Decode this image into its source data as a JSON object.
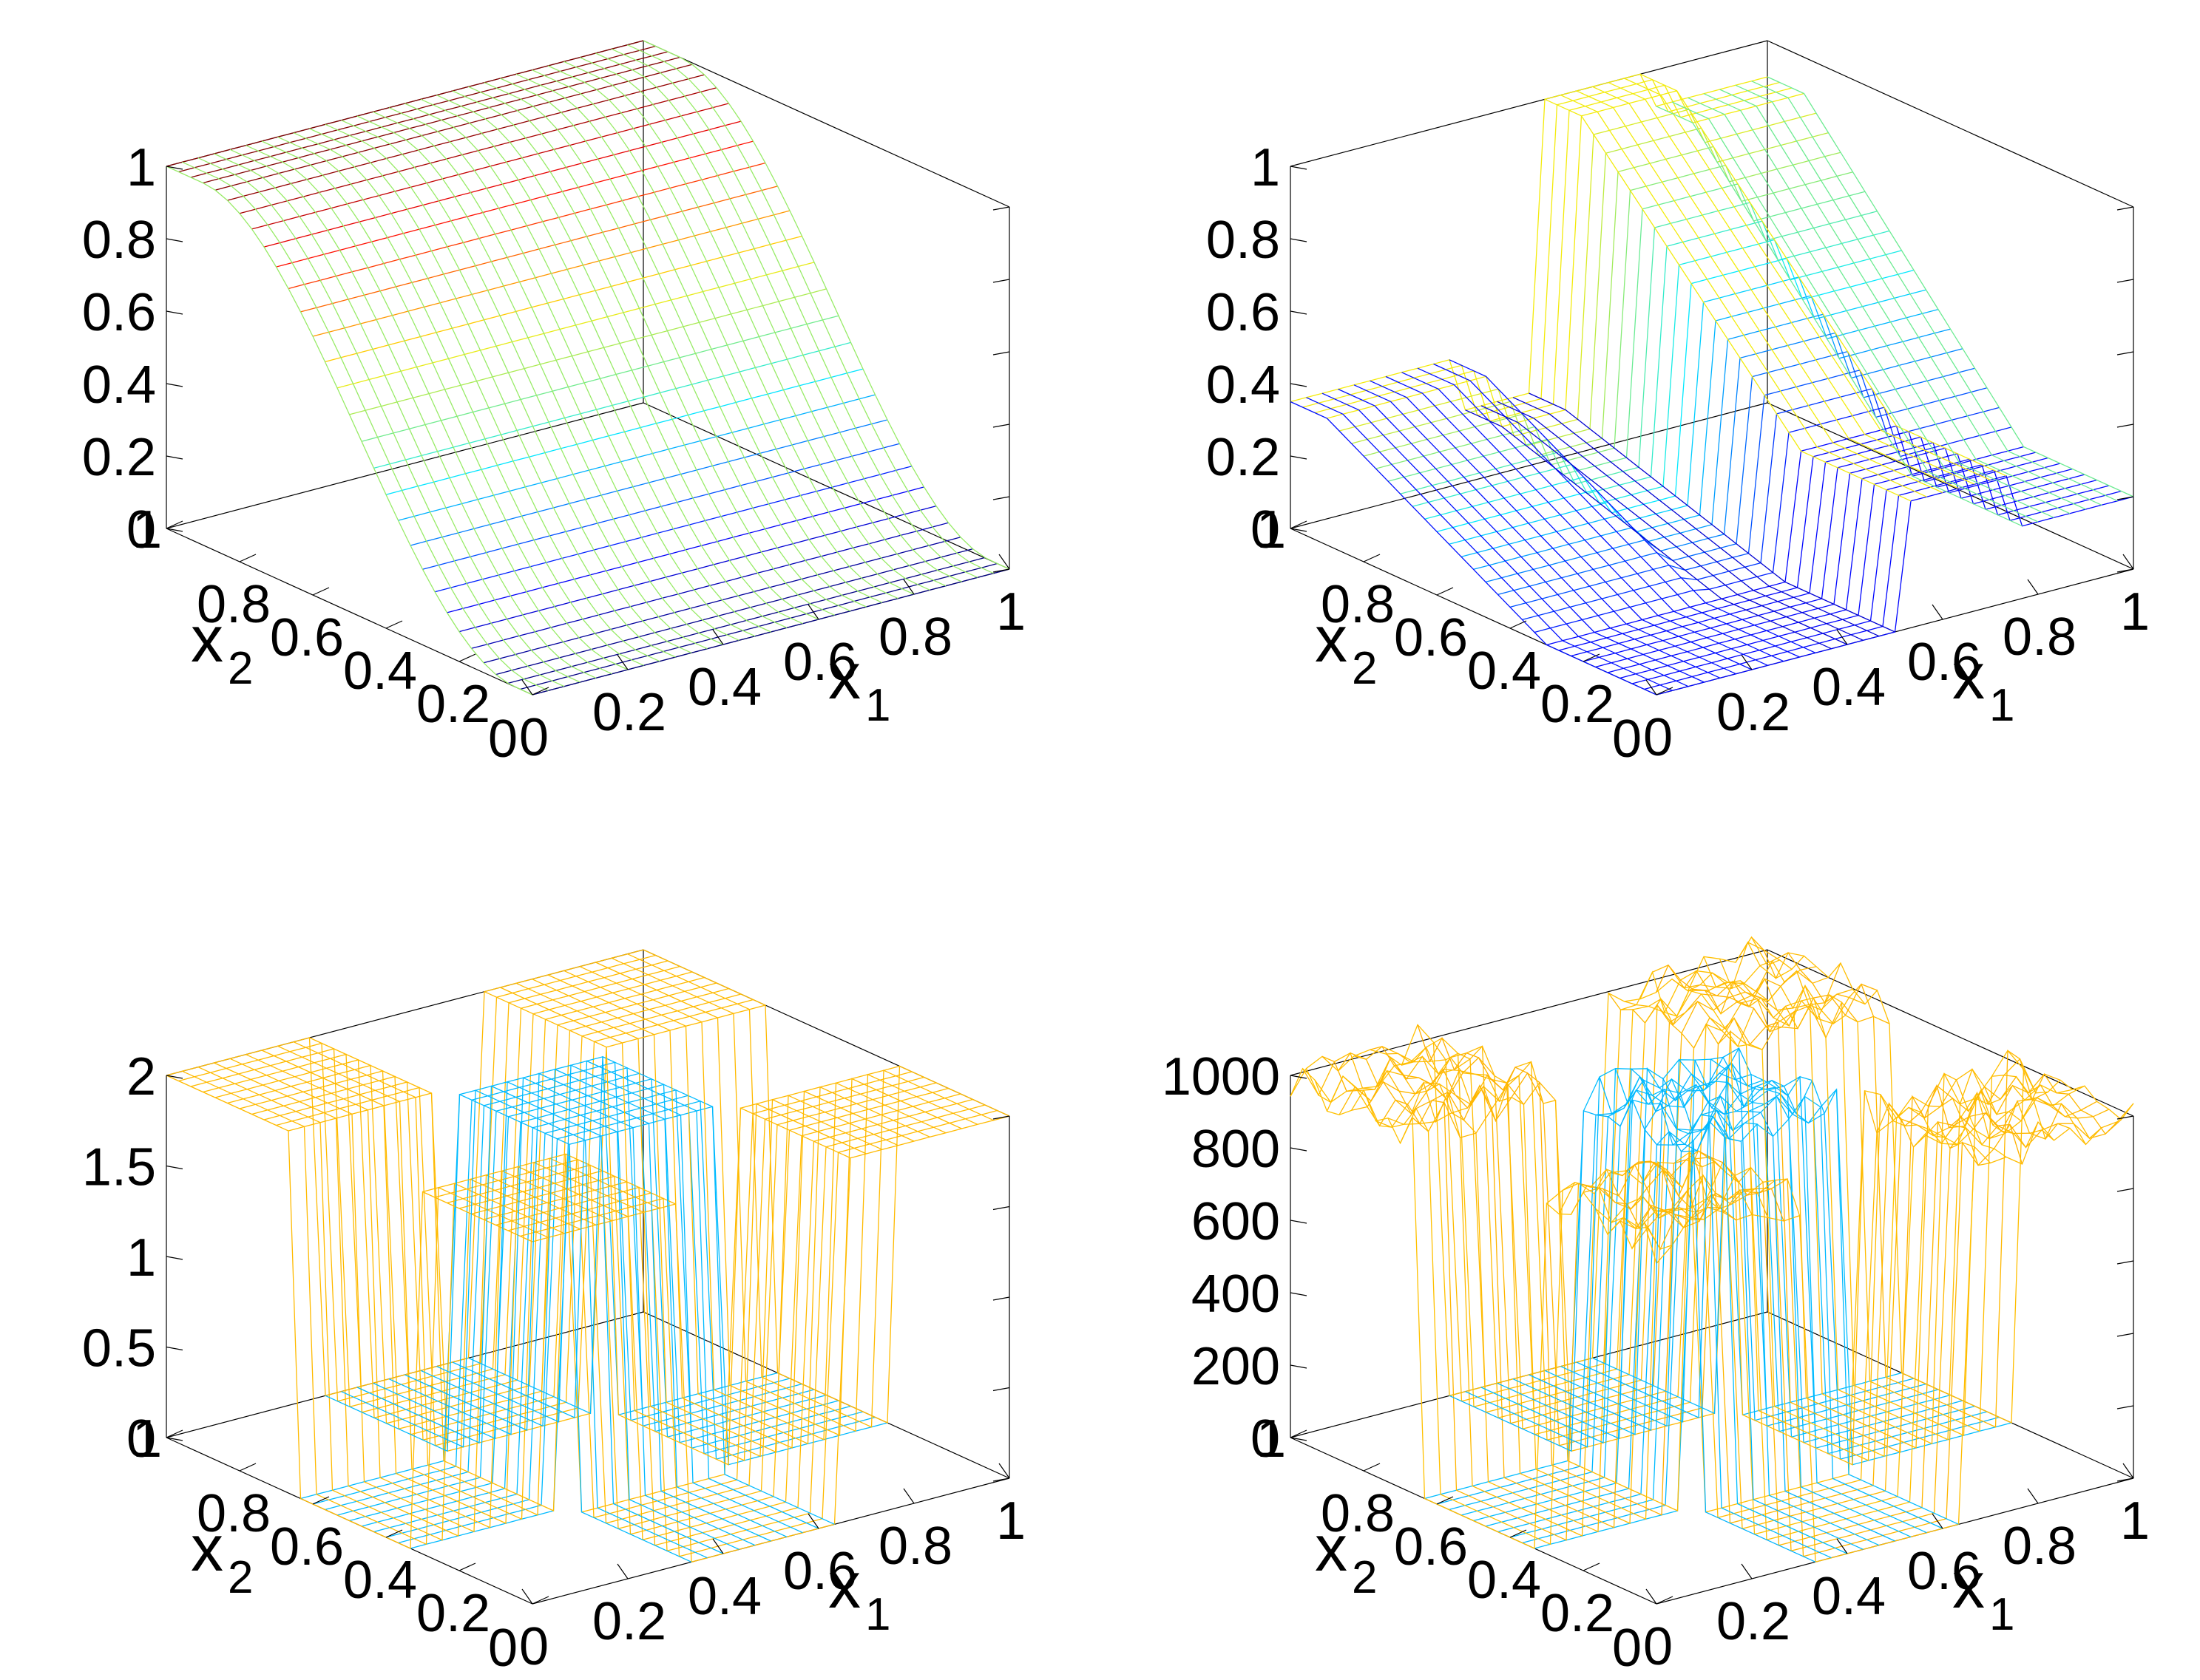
{
  "chart_data": [
    {
      "type": "surface3d",
      "panel": "top-left",
      "xlabel": "x",
      "xlabel_sub": "1",
      "ylabel": "x",
      "ylabel_sub": "2",
      "xlim": [
        0,
        1
      ],
      "ylim": [
        0,
        1
      ],
      "zlim": [
        0,
        1
      ],
      "x_ticks": [
        "0",
        "0.2",
        "0.4",
        "0.6",
        "0.8",
        "1"
      ],
      "y_ticks": [
        "0",
        "0.2",
        "0.4",
        "0.6",
        "0.8",
        "1"
      ],
      "z_ticks": [
        "0",
        "0.2",
        "0.4",
        "0.6",
        "0.8",
        "1"
      ],
      "surface": {
        "kind": "two-ridges",
        "description_values": {
          "ridge_1_x_range": [
            0.0,
            0.4
          ],
          "ridge_2_x_range": [
            0.4,
            1.0
          ],
          "z_at_y0": 0.0,
          "z_at_y1": 1.0
        }
      },
      "colormap": "jet"
    },
    {
      "type": "surface3d",
      "panel": "top-right",
      "xlabel": "x",
      "xlabel_sub": "1",
      "ylabel": "x",
      "ylabel_sub": "2",
      "xlim": [
        0,
        1
      ],
      "ylim": [
        0,
        1
      ],
      "zlim": [
        0,
        1
      ],
      "x_ticks": [
        "0",
        "0.2",
        "0.4",
        "0.6",
        "0.8",
        "1"
      ],
      "y_ticks": [
        "0",
        "0.2",
        "0.4",
        "0.6",
        "0.8",
        "1"
      ],
      "z_ticks": [
        "0",
        "0.2",
        "0.4",
        "0.6",
        "0.8",
        "1"
      ],
      "surface": {
        "kind": "piecewise-steps",
        "x_bands": [
          {
            "x": [
              0.0,
              0.35
            ],
            "z_low": 0.0,
            "z_high": 0.35
          },
          {
            "x": [
              0.35,
              0.5
            ],
            "z_low": 0.0,
            "z_high": 0.2
          },
          {
            "x": [
              0.5,
              0.75
            ],
            "z_low": 0.35,
            "z_high": 1.0
          },
          {
            "x": [
              0.75,
              1.0
            ],
            "z_low": 0.2,
            "z_high": 0.9
          }
        ]
      },
      "colormap": "jet"
    },
    {
      "type": "surface3d",
      "panel": "bottom-left",
      "xlabel": "x",
      "xlabel_sub": "1",
      "ylabel": "x",
      "ylabel_sub": "2",
      "xlim": [
        0,
        1
      ],
      "ylim": [
        0,
        1
      ],
      "zlim": [
        0,
        2
      ],
      "x_ticks": [
        "0",
        "0.2",
        "0.4",
        "0.6",
        "0.8",
        "1"
      ],
      "y_ticks": [
        "0",
        "0.2",
        "0.4",
        "0.6",
        "0.8",
        "1"
      ],
      "z_ticks": [
        "0",
        "0.5",
        "1",
        "1.5",
        "2"
      ],
      "surface": {
        "kind": "checkerboard-3x3",
        "grid": [
          [
            2,
            0,
            2
          ],
          [
            0,
            2,
            0
          ],
          [
            2,
            0,
            2
          ]
        ]
      },
      "colormap": "jet"
    },
    {
      "type": "surface3d",
      "panel": "bottom-right",
      "xlabel": "x",
      "xlabel_sub": "1",
      "ylabel": "x",
      "ylabel_sub": "2",
      "xlim": [
        0,
        1
      ],
      "ylim": [
        0,
        1
      ],
      "zlim": [
        0,
        1000
      ],
      "x_ticks": [
        "0",
        "0.2",
        "0.4",
        "0.6",
        "0.8",
        "1"
      ],
      "y_ticks": [
        "0",
        "0.2",
        "0.4",
        "0.6",
        "0.8",
        "1"
      ],
      "z_ticks": [
        "0",
        "200",
        "400",
        "600",
        "800",
        "1000"
      ],
      "surface": {
        "kind": "noisy-checkerboard-3x3",
        "grid": [
          [
            1000,
            0,
            1000
          ],
          [
            0,
            1000,
            0
          ],
          [
            1000,
            0,
            1000
          ]
        ],
        "noise_amplitude": 60
      },
      "colormap": "jet"
    }
  ]
}
